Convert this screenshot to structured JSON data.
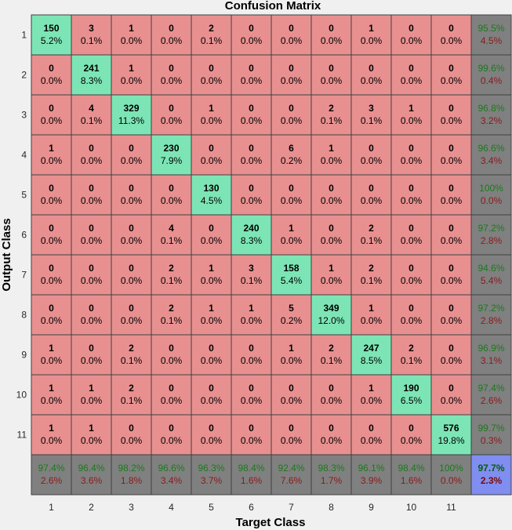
{
  "chart_data": {
    "type": "heatmap",
    "title": "Confusion Matrix",
    "xlabel": "Target Class",
    "ylabel": "Output Class",
    "classes": [
      "1",
      "2",
      "3",
      "4",
      "5",
      "6",
      "7",
      "8",
      "9",
      "10",
      "11"
    ],
    "counts": [
      [
        150,
        3,
        1,
        0,
        2,
        0,
        0,
        0,
        1,
        0,
        0
      ],
      [
        0,
        241,
        1,
        0,
        0,
        0,
        0,
        0,
        0,
        0,
        0
      ],
      [
        0,
        4,
        329,
        0,
        1,
        0,
        0,
        2,
        3,
        1,
        0
      ],
      [
        1,
        0,
        0,
        230,
        0,
        0,
        6,
        1,
        0,
        0,
        0
      ],
      [
        0,
        0,
        0,
        0,
        130,
        0,
        0,
        0,
        0,
        0,
        0
      ],
      [
        0,
        0,
        0,
        4,
        0,
        240,
        1,
        0,
        2,
        0,
        0
      ],
      [
        0,
        0,
        0,
        2,
        1,
        3,
        158,
        1,
        2,
        0,
        0
      ],
      [
        0,
        0,
        0,
        2,
        1,
        1,
        5,
        349,
        1,
        0,
        0
      ],
      [
        1,
        0,
        2,
        0,
        0,
        0,
        1,
        2,
        247,
        2,
        0
      ],
      [
        1,
        1,
        2,
        0,
        0,
        0,
        0,
        0,
        1,
        190,
        0
      ],
      [
        1,
        1,
        0,
        0,
        0,
        0,
        0,
        0,
        0,
        0,
        576
      ]
    ],
    "percents": [
      [
        "5.2%",
        "0.1%",
        "0.0%",
        "0.0%",
        "0.1%",
        "0.0%",
        "0.0%",
        "0.0%",
        "0.0%",
        "0.0%",
        "0.0%"
      ],
      [
        "0.0%",
        "8.3%",
        "0.0%",
        "0.0%",
        "0.0%",
        "0.0%",
        "0.0%",
        "0.0%",
        "0.0%",
        "0.0%",
        "0.0%"
      ],
      [
        "0.0%",
        "0.1%",
        "11.3%",
        "0.0%",
        "0.0%",
        "0.0%",
        "0.0%",
        "0.1%",
        "0.1%",
        "0.0%",
        "0.0%"
      ],
      [
        "0.0%",
        "0.0%",
        "0.0%",
        "7.9%",
        "0.0%",
        "0.0%",
        "0.2%",
        "0.0%",
        "0.0%",
        "0.0%",
        "0.0%"
      ],
      [
        "0.0%",
        "0.0%",
        "0.0%",
        "0.0%",
        "4.5%",
        "0.0%",
        "0.0%",
        "0.0%",
        "0.0%",
        "0.0%",
        "0.0%"
      ],
      [
        "0.0%",
        "0.0%",
        "0.0%",
        "0.1%",
        "0.0%",
        "8.3%",
        "0.0%",
        "0.0%",
        "0.1%",
        "0.0%",
        "0.0%"
      ],
      [
        "0.0%",
        "0.0%",
        "0.0%",
        "0.1%",
        "0.0%",
        "0.1%",
        "5.4%",
        "0.0%",
        "0.1%",
        "0.0%",
        "0.0%"
      ],
      [
        "0.0%",
        "0.0%",
        "0.0%",
        "0.1%",
        "0.0%",
        "0.0%",
        "0.2%",
        "12.0%",
        "0.0%",
        "0.0%",
        "0.0%"
      ],
      [
        "0.0%",
        "0.0%",
        "0.1%",
        "0.0%",
        "0.0%",
        "0.0%",
        "0.0%",
        "0.1%",
        "8.5%",
        "0.1%",
        "0.0%"
      ],
      [
        "0.0%",
        "0.0%",
        "0.1%",
        "0.0%",
        "0.0%",
        "0.0%",
        "0.0%",
        "0.0%",
        "0.0%",
        "6.5%",
        "0.0%"
      ],
      [
        "0.0%",
        "0.0%",
        "0.0%",
        "0.0%",
        "0.0%",
        "0.0%",
        "0.0%",
        "0.0%",
        "0.0%",
        "0.0%",
        "19.8%"
      ]
    ],
    "row_summary": [
      [
        "95.5%",
        "4.5%"
      ],
      [
        "99.6%",
        "0.4%"
      ],
      [
        "96.8%",
        "3.2%"
      ],
      [
        "96.6%",
        "3.4%"
      ],
      [
        "100%",
        "0.0%"
      ],
      [
        "97.2%",
        "2.8%"
      ],
      [
        "94.6%",
        "5.4%"
      ],
      [
        "97.2%",
        "2.8%"
      ],
      [
        "96.9%",
        "3.1%"
      ],
      [
        "97.4%",
        "2.6%"
      ],
      [
        "99.7%",
        "0.3%"
      ]
    ],
    "col_summary": [
      [
        "97.4%",
        "2.6%"
      ],
      [
        "96.4%",
        "3.6%"
      ],
      [
        "98.2%",
        "1.8%"
      ],
      [
        "96.6%",
        "3.4%"
      ],
      [
        "96.3%",
        "3.7%"
      ],
      [
        "98.4%",
        "1.6%"
      ],
      [
        "92.4%",
        "7.6%"
      ],
      [
        "98.3%",
        "1.7%"
      ],
      [
        "96.1%",
        "3.9%"
      ],
      [
        "98.4%",
        "1.6%"
      ],
      [
        "100%",
        "0.0%"
      ]
    ],
    "overall": [
      "97.7%",
      "2.3%"
    ],
    "colors": {
      "diagonal": "#7de5b5",
      "offdiagonal": "#e89090",
      "summary": "#808080",
      "overall": "#7f8ef0",
      "grid": "#404040"
    }
  }
}
